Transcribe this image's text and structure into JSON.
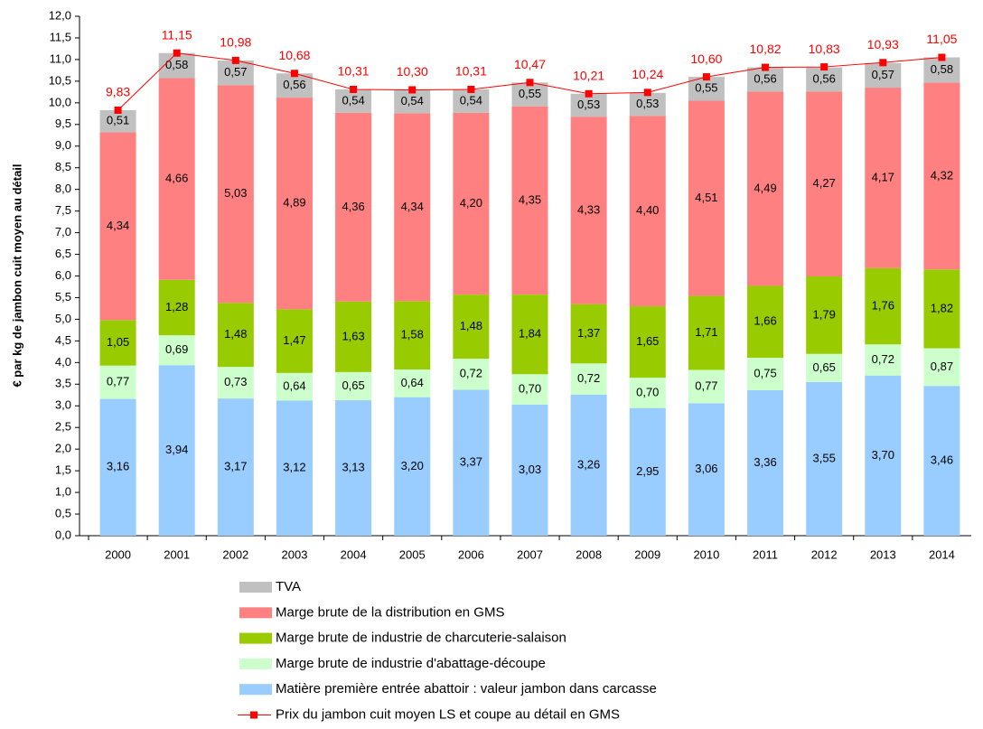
{
  "chart_data": {
    "type": "bar",
    "stacked": true,
    "y_label": "€ par kg de jambon cuit moyen au détail",
    "categories": [
      "2000",
      "2001",
      "2002",
      "2003",
      "2004",
      "2005",
      "2006",
      "2007",
      "2008",
      "2009",
      "2010",
      "2011",
      "2012",
      "2013",
      "2014"
    ],
    "ylim": [
      0,
      12
    ],
    "yticks": [
      {
        "value": 0,
        "label": "0,0"
      },
      {
        "value": 0.5,
        "label": "0,5"
      },
      {
        "value": 1,
        "label": "1,0"
      },
      {
        "value": 1.5,
        "label": "1,5"
      },
      {
        "value": 2,
        "label": "2,0"
      },
      {
        "value": 2.5,
        "label": "2,5"
      },
      {
        "value": 3,
        "label": "3,0"
      },
      {
        "value": 3.5,
        "label": "3,5"
      },
      {
        "value": 4,
        "label": "4,0"
      },
      {
        "value": 4.5,
        "label": "4,5"
      },
      {
        "value": 5,
        "label": "5,0"
      },
      {
        "value": 5.5,
        "label": "5,5"
      },
      {
        "value": 6,
        "label": "6,0"
      },
      {
        "value": 6.5,
        "label": "6,5"
      },
      {
        "value": 7,
        "label": "7,0"
      },
      {
        "value": 7.5,
        "label": "7,5"
      },
      {
        "value": 8,
        "label": "8,0"
      },
      {
        "value": 8.5,
        "label": "8,5"
      },
      {
        "value": 9,
        "label": "9,0"
      },
      {
        "value": 9.5,
        "label": "9,5"
      },
      {
        "value": 10,
        "label": "10,0"
      },
      {
        "value": 10.5,
        "label": "10,5"
      },
      {
        "value": 11,
        "label": "11,0"
      },
      {
        "value": 11.5,
        "label": "11,5"
      },
      {
        "value": 12,
        "label": "12,0"
      }
    ],
    "grid": false,
    "series": [
      {
        "name": "Matière première entrée abattoir : valeur jambon dans carcasse",
        "type": "bar",
        "color": "#99ccff",
        "values": [
          3.16,
          3.94,
          3.17,
          3.12,
          3.13,
          3.2,
          3.37,
          3.03,
          3.26,
          2.95,
          3.06,
          3.36,
          3.55,
          3.7,
          3.46
        ],
        "value_labels": [
          "3,16",
          "3,94",
          "3,17",
          "3,12",
          "3,13",
          "3,20",
          "3,37",
          "3,03",
          "3,26",
          "2,95",
          "3,06",
          "3,36",
          "3,55",
          "3,70",
          "3,46"
        ]
      },
      {
        "name": "Marge brute de industrie d'abattage-découpe",
        "type": "bar",
        "color": "#ccffcc",
        "values": [
          0.77,
          0.69,
          0.73,
          0.64,
          0.65,
          0.64,
          0.72,
          0.7,
          0.72,
          0.7,
          0.77,
          0.75,
          0.65,
          0.72,
          0.87
        ],
        "value_labels": [
          "0,77",
          "0,69",
          "0,73",
          "0,64",
          "0,65",
          "0,64",
          "0,72",
          "0,70",
          "0,72",
          "0,70",
          "0,77",
          "0,75",
          "0,65",
          "0,72",
          "0,87"
        ]
      },
      {
        "name": "Marge brute de industrie de charcuterie-salaison",
        "type": "bar",
        "color": "#99cc00",
        "values": [
          1.05,
          1.28,
          1.48,
          1.47,
          1.63,
          1.58,
          1.48,
          1.84,
          1.37,
          1.65,
          1.71,
          1.66,
          1.79,
          1.76,
          1.82
        ],
        "value_labels": [
          "1,05",
          "1,28",
          "1,48",
          "1,47",
          "1,63",
          "1,58",
          "1,48",
          "1,84",
          "1,37",
          "1,65",
          "1,71",
          "1,66",
          "1,79",
          "1,76",
          "1,82"
        ]
      },
      {
        "name": "Marge brute de la distribution en GMS",
        "type": "bar",
        "color": "#ff8080",
        "values": [
          4.34,
          4.66,
          5.03,
          4.89,
          4.36,
          4.34,
          4.2,
          4.35,
          4.33,
          4.4,
          4.51,
          4.49,
          4.27,
          4.17,
          4.32
        ],
        "value_labels": [
          "4,34",
          "4,66",
          "5,03",
          "4,89",
          "4,36",
          "4,34",
          "4,20",
          "4,35",
          "4,33",
          "4,40",
          "4,51",
          "4,49",
          "4,27",
          "4,17",
          "4,32"
        ]
      },
      {
        "name": "TVA",
        "type": "bar",
        "color": "#c0c0c0",
        "values": [
          0.51,
          0.58,
          0.57,
          0.56,
          0.54,
          0.54,
          0.54,
          0.55,
          0.53,
          0.53,
          0.55,
          0.56,
          0.56,
          0.57,
          0.58
        ],
        "value_labels": [
          "0,51",
          "0,58",
          "0,57",
          "0,56",
          "0,54",
          "0,54",
          "0,54",
          "0,55",
          "0,53",
          "0,53",
          "0,55",
          "0,56",
          "0,56",
          "0,57",
          "0,58"
        ]
      },
      {
        "name": "Prix du jambon cuit moyen LS et coupe au détail en GMS",
        "type": "line",
        "color": "#ff0000",
        "values": [
          9.83,
          11.15,
          10.98,
          10.68,
          10.31,
          10.3,
          10.31,
          10.47,
          10.21,
          10.24,
          10.6,
          10.82,
          10.83,
          10.93,
          11.05
        ],
        "value_labels": [
          "9,83",
          "11,15",
          "10,98",
          "10,68",
          "10,31",
          "10,30",
          "10,31",
          "10,47",
          "10,21",
          "10,24",
          "10,60",
          "10,82",
          "10,83",
          "10,93",
          "11,05"
        ]
      }
    ]
  }
}
